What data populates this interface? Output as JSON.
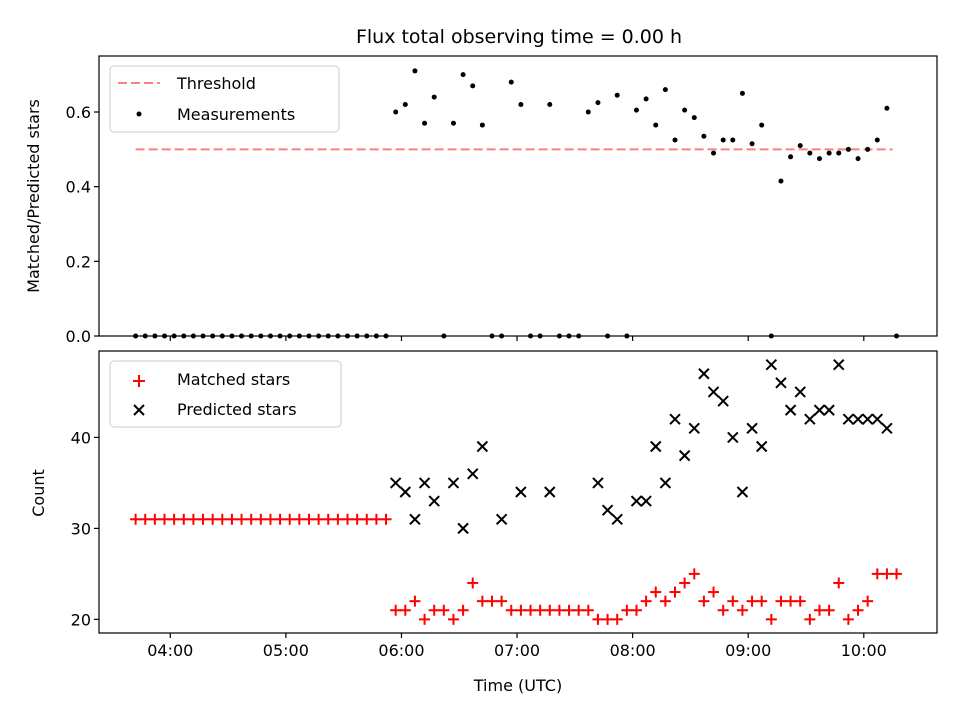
{
  "chart_data": [
    {
      "type": "scatter",
      "title": "Flux total observing time = 0.00 h",
      "xlabel": "",
      "ylabel": "Matched/Predicted stars",
      "xlim": [
        "03:23",
        "10:38"
      ],
      "ylim": [
        0,
        0.75
      ],
      "yticks": [
        0.0,
        0.2,
        0.4,
        0.6
      ],
      "ytick_labels": [
        "0.0",
        "0.2",
        "0.4",
        "0.6"
      ],
      "xticks": [
        "04:00",
        "05:00",
        "06:00",
        "07:00",
        "08:00",
        "09:00",
        "10:00"
      ],
      "xtick_labels": [
        "",
        "",
        "",
        "",
        "",
        "",
        ""
      ],
      "grid": false,
      "legend": "top-left",
      "series": [
        {
          "name": "Threshold",
          "kind": "dashed-line",
          "color": "#ff7f7f",
          "x": [
            "03:42",
            "10:15"
          ],
          "y": [
            0.5,
            0.5
          ]
        },
        {
          "name": "Measurements",
          "kind": "dots",
          "color": "#000000",
          "x": [
            "03:42",
            "03:47",
            "03:52",
            "03:57",
            "04:02",
            "04:07",
            "04:12",
            "04:17",
            "04:22",
            "04:27",
            "04:32",
            "04:37",
            "04:42",
            "04:47",
            "04:52",
            "04:57",
            "05:02",
            "05:07",
            "05:12",
            "05:17",
            "05:22",
            "05:27",
            "05:32",
            "05:37",
            "05:42",
            "05:47",
            "05:52",
            "05:57",
            "06:02",
            "06:07",
            "06:12",
            "06:17",
            "06:22",
            "06:27",
            "06:32",
            "06:37",
            "06:42",
            "06:47",
            "06:52",
            "06:57",
            "07:02",
            "07:07",
            "07:12",
            "07:17",
            "07:22",
            "07:27",
            "07:32",
            "07:37",
            "07:42",
            "07:47",
            "07:52",
            "07:57",
            "08:02",
            "08:07",
            "08:12",
            "08:17",
            "08:22",
            "08:27",
            "08:32",
            "08:37",
            "08:42",
            "08:47",
            "08:52",
            "08:57",
            "09:02",
            "09:07",
            "09:12",
            "09:17",
            "09:22",
            "09:27",
            "09:32",
            "09:37",
            "09:42",
            "09:47",
            "09:52",
            "09:57",
            "10:02",
            "10:07",
            "10:12",
            "10:17"
          ],
          "y": [
            0,
            0,
            0,
            0,
            0,
            0,
            0,
            0,
            0,
            0,
            0,
            0,
            0,
            0,
            0,
            0,
            0,
            0,
            0,
            0,
            0,
            0,
            0,
            0,
            0,
            0,
            0,
            0.6,
            0.62,
            0.71,
            0.57,
            0.64,
            0,
            0.57,
            0.7,
            0.67,
            0.565,
            0,
            0,
            0.68,
            0.62,
            0,
            0,
            0.62,
            0,
            0,
            0,
            0.6,
            0.625,
            0,
            0.645,
            0,
            0.605,
            0.635,
            0.565,
            0.66,
            0.525,
            0.605,
            0.585,
            0.535,
            0.49,
            0.525,
            0.525,
            0.65,
            0.515,
            0.565,
            0,
            0.415,
            0.48,
            0.51,
            0.49,
            0.475,
            0.49,
            0.49,
            0.5,
            0.475,
            0.5,
            0.525,
            0.61,
            0
          ]
        }
      ]
    },
    {
      "type": "scatter",
      "title": "",
      "xlabel": "Time (UTC)",
      "ylabel": "Count",
      "xlim": [
        "03:23",
        "10:38"
      ],
      "ylim": [
        18.5,
        49.5
      ],
      "yticks": [
        20,
        30,
        40
      ],
      "ytick_labels": [
        "20",
        "30",
        "40"
      ],
      "xticks": [
        "04:00",
        "05:00",
        "06:00",
        "07:00",
        "08:00",
        "09:00",
        "10:00"
      ],
      "xtick_labels": [
        "04:00",
        "05:00",
        "06:00",
        "07:00",
        "08:00",
        "09:00",
        "10:00"
      ],
      "grid": false,
      "legend": "top-left",
      "series": [
        {
          "name": "Matched stars",
          "kind": "plus",
          "color": "#ff0000",
          "x": [
            "03:42",
            "03:47",
            "03:52",
            "03:57",
            "04:02",
            "04:07",
            "04:12",
            "04:17",
            "04:22",
            "04:27",
            "04:32",
            "04:37",
            "04:42",
            "04:47",
            "04:52",
            "04:57",
            "05:02",
            "05:07",
            "05:12",
            "05:17",
            "05:22",
            "05:27",
            "05:32",
            "05:37",
            "05:42",
            "05:47",
            "05:52",
            "05:57",
            "06:02",
            "06:07",
            "06:12",
            "06:17",
            "06:22",
            "06:27",
            "06:32",
            "06:37",
            "06:42",
            "06:47",
            "06:52",
            "06:57",
            "07:02",
            "07:07",
            "07:12",
            "07:17",
            "07:22",
            "07:27",
            "07:32",
            "07:37",
            "07:42",
            "07:47",
            "07:52",
            "07:57",
            "08:02",
            "08:07",
            "08:12",
            "08:17",
            "08:22",
            "08:27",
            "08:32",
            "08:37",
            "08:42",
            "08:47",
            "08:52",
            "08:57",
            "09:02",
            "09:07",
            "09:12",
            "09:17",
            "09:22",
            "09:27",
            "09:32",
            "09:37",
            "09:42",
            "09:47",
            "09:52",
            "09:57",
            "10:02",
            "10:07",
            "10:12",
            "10:17"
          ],
          "y": [
            31,
            31,
            31,
            31,
            31,
            31,
            31,
            31,
            31,
            31,
            31,
            31,
            31,
            31,
            31,
            31,
            31,
            31,
            31,
            31,
            31,
            31,
            31,
            31,
            31,
            31,
            31,
            21,
            21,
            22,
            20,
            21,
            21,
            20,
            21,
            24,
            22,
            22,
            22,
            21,
            21,
            21,
            21,
            21,
            21,
            21,
            21,
            21,
            20,
            20,
            20,
            21,
            21,
            22,
            23,
            22,
            23,
            24,
            25,
            22,
            23,
            21,
            22,
            21,
            22,
            22,
            20,
            22,
            22,
            22,
            20,
            21,
            21,
            24,
            20,
            21,
            22,
            25,
            25,
            25
          ]
        },
        {
          "name": "Predicted stars",
          "kind": "cross",
          "color": "#000000",
          "x": [
            "05:57",
            "06:02",
            "06:07",
            "06:12",
            "06:17",
            "06:27",
            "06:32",
            "06:37",
            "06:42",
            "06:52",
            "07:02",
            "07:17",
            "07:42",
            "07:47",
            "07:52",
            "08:02",
            "08:07",
            "08:12",
            "08:17",
            "08:22",
            "08:27",
            "08:32",
            "08:37",
            "08:42",
            "08:47",
            "08:52",
            "08:57",
            "09:02",
            "09:07",
            "09:12",
            "09:17",
            "09:22",
            "09:27",
            "09:32",
            "09:37",
            "09:42",
            "09:47",
            "09:52",
            "09:57",
            "10:02",
            "10:07",
            "10:12"
          ],
          "y": [
            35,
            34,
            31,
            35,
            33,
            35,
            30,
            36,
            39,
            31,
            34,
            34,
            35,
            32,
            31,
            33,
            33,
            39,
            35,
            42,
            38,
            41,
            47,
            45,
            44,
            40,
            34,
            41,
            39,
            48,
            46,
            43,
            45,
            42,
            43,
            43,
            48,
            42,
            42,
            42,
            42,
            41
          ]
        }
      ]
    }
  ]
}
